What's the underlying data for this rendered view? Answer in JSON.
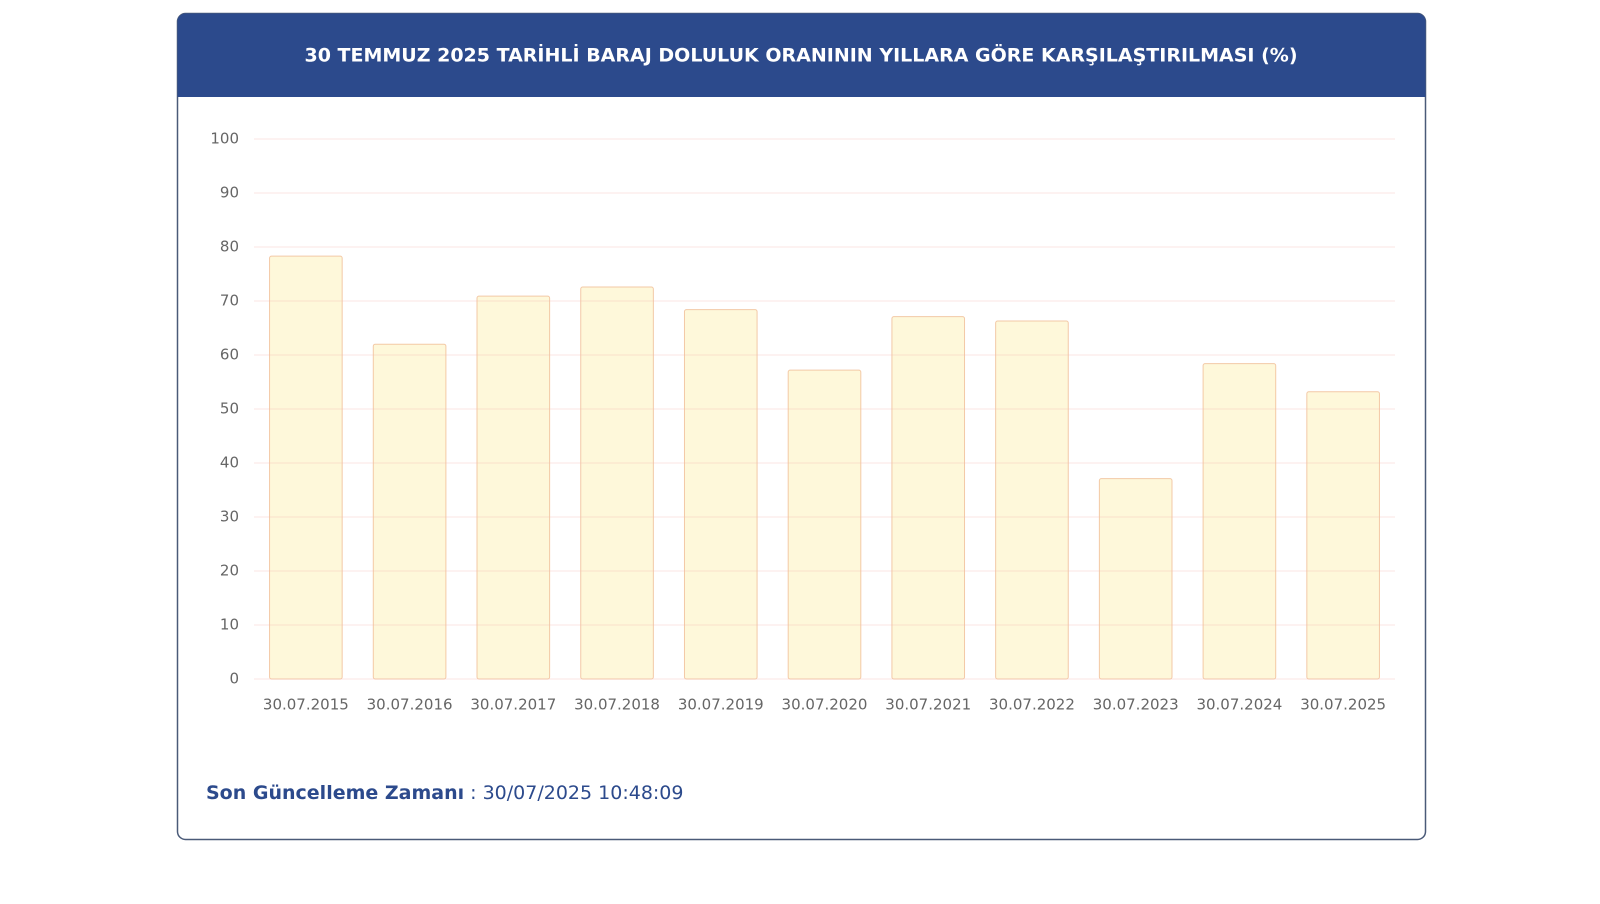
{
  "chart_data": {
    "type": "bar",
    "title": "30 TEMMUZ 2025 TARİHLİ BARAJ DOLULUK ORANININ YILLARA GÖRE KARŞILAŞTIRILMASI (%)",
    "categories": [
      "30.07.2015",
      "30.07.2016",
      "30.07.2017",
      "30.07.2018",
      "30.07.2019",
      "30.07.2020",
      "30.07.2021",
      "30.07.2022",
      "30.07.2023",
      "30.07.2024",
      "30.07.2025"
    ],
    "values": [
      78.3,
      62.0,
      70.9,
      72.6,
      68.4,
      57.2,
      67.1,
      66.3,
      37.1,
      58.4,
      53.2
    ],
    "color": "#fef8da",
    "border_color": "#f3c9a6",
    "ylim": [
      0,
      100
    ],
    "yticks": [
      0,
      10,
      20,
      30,
      40,
      50,
      60,
      70,
      80,
      90,
      100
    ],
    "grid": true
  },
  "footer": {
    "label": "Son Güncelleme Zamanı",
    "value": ": 30/07/2025 10:48:09"
  }
}
